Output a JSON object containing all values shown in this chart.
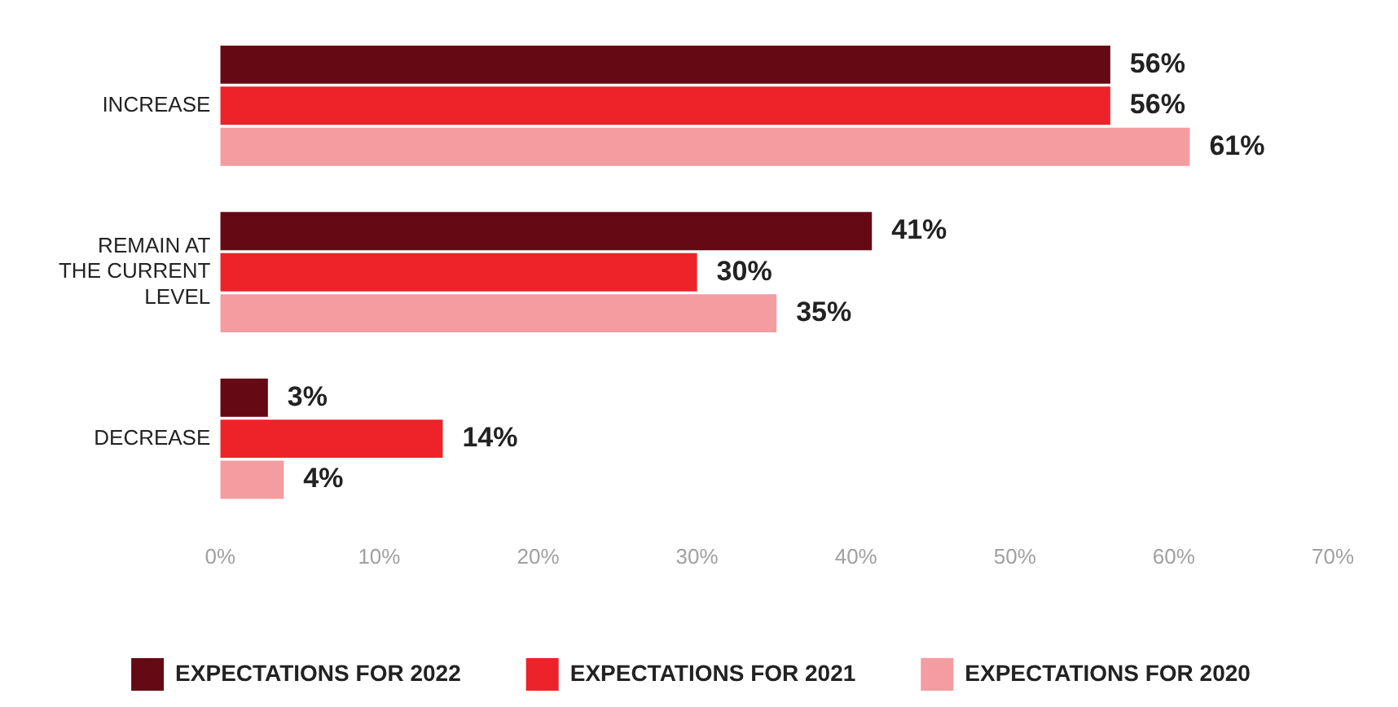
{
  "chart_data": {
    "type": "bar",
    "orientation": "horizontal",
    "categories": [
      "INCREASE",
      "REMAIN AT THE CURRENT LEVEL",
      "DECREASE"
    ],
    "series": [
      {
        "name": "EXPECTATIONS FOR 2022",
        "color": "#650a14",
        "values": [
          56,
          41,
          3
        ],
        "value_labels": [
          "56%",
          "41%",
          "3%"
        ]
      },
      {
        "name": "EXPECTATIONS FOR 2021",
        "color": "#ee2229",
        "values": [
          56,
          30,
          14
        ],
        "value_labels": [
          "56%",
          "30%",
          "14%"
        ]
      },
      {
        "name": "EXPECTATIONS FOR 2020",
        "color": "#f59ca0",
        "values": [
          61,
          35,
          4
        ],
        "value_labels": [
          "61%",
          "35%",
          "4%"
        ]
      }
    ],
    "xlim": [
      0,
      70
    ],
    "xticks": [
      {
        "value": 0,
        "label": "0%"
      },
      {
        "value": 10,
        "label": "10%"
      },
      {
        "value": 20,
        "label": "20%"
      },
      {
        "value": 30,
        "label": "30%"
      },
      {
        "value": 40,
        "label": "40%"
      },
      {
        "value": 50,
        "label": "50%"
      },
      {
        "value": 60,
        "label": "60%"
      },
      {
        "value": 70,
        "label": "70%"
      }
    ],
    "grid": false,
    "legend": "bottom"
  }
}
